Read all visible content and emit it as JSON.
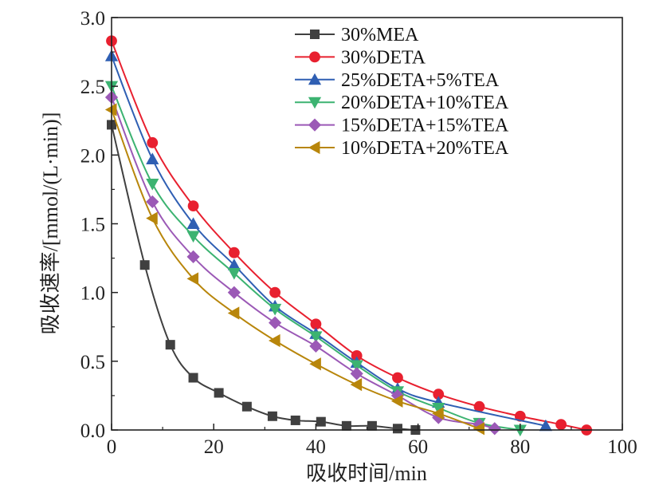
{
  "chart_data": {
    "type": "line",
    "xlabel": "吸收时间/min",
    "ylabel": "吸收速率/[mmol/(L·min)]",
    "xlim": [
      0,
      100
    ],
    "ylim": [
      0.0,
      3.0
    ],
    "x_ticks": [
      "0",
      "20",
      "40",
      "60",
      "80",
      "100"
    ],
    "y_ticks": [
      "0.0",
      "0.5",
      "1.0",
      "1.5",
      "2.0",
      "2.5",
      "3.0"
    ],
    "grid": false,
    "legend_position": "top-right",
    "series": [
      {
        "name": "30%MEA",
        "color": "#404040",
        "marker": "square",
        "x": [
          0,
          6.5,
          11.5,
          16,
          21,
          26.5,
          31.5,
          36,
          41,
          46,
          51,
          56,
          59.5
        ],
        "y": [
          2.22,
          1.2,
          0.62,
          0.38,
          0.27,
          0.17,
          0.1,
          0.07,
          0.06,
          0.03,
          0.03,
          0.01,
          0.0
        ]
      },
      {
        "name": "30%DETA",
        "color": "#e8202f",
        "marker": "circle",
        "x": [
          0,
          8,
          16,
          24,
          32,
          40,
          48,
          56,
          64,
          72,
          80,
          88,
          93
        ],
        "y": [
          2.83,
          2.09,
          1.63,
          1.29,
          1.0,
          0.77,
          0.54,
          0.38,
          0.26,
          0.17,
          0.1,
          0.04,
          0.0
        ]
      },
      {
        "name": "25%DETA+5%TEA",
        "color": "#2f5fb3",
        "marker": "triangle-up",
        "x": [
          0,
          8,
          16,
          24,
          32,
          40,
          48,
          56,
          64,
          85
        ],
        "y": [
          2.72,
          1.97,
          1.5,
          1.2,
          0.9,
          0.7,
          0.49,
          0.3,
          0.2,
          0.03
        ]
      },
      {
        "name": "20%DETA+10%TEA",
        "color": "#3cb371",
        "marker": "triangle-down",
        "x": [
          0,
          8,
          16,
          24,
          32,
          40,
          48,
          56,
          64,
          72,
          80
        ],
        "y": [
          2.5,
          1.79,
          1.41,
          1.14,
          0.88,
          0.68,
          0.47,
          0.28,
          0.16,
          0.05,
          0.0
        ]
      },
      {
        "name": "15%DETA+15%TEA",
        "color": "#9b59b6",
        "marker": "diamond",
        "x": [
          0,
          8,
          16,
          24,
          32,
          40,
          48,
          56,
          64,
          72,
          75
        ],
        "y": [
          2.42,
          1.66,
          1.26,
          1.0,
          0.78,
          0.61,
          0.41,
          0.25,
          0.09,
          0.04,
          0.01
        ]
      },
      {
        "name": "10%DETA+20%TEA",
        "color": "#b8860b",
        "marker": "triangle-left",
        "x": [
          0,
          8,
          16,
          24,
          32,
          40,
          48,
          56,
          64,
          72
        ],
        "y": [
          2.33,
          1.54,
          1.1,
          0.85,
          0.65,
          0.48,
          0.33,
          0.21,
          0.12,
          0.01
        ]
      }
    ]
  }
}
